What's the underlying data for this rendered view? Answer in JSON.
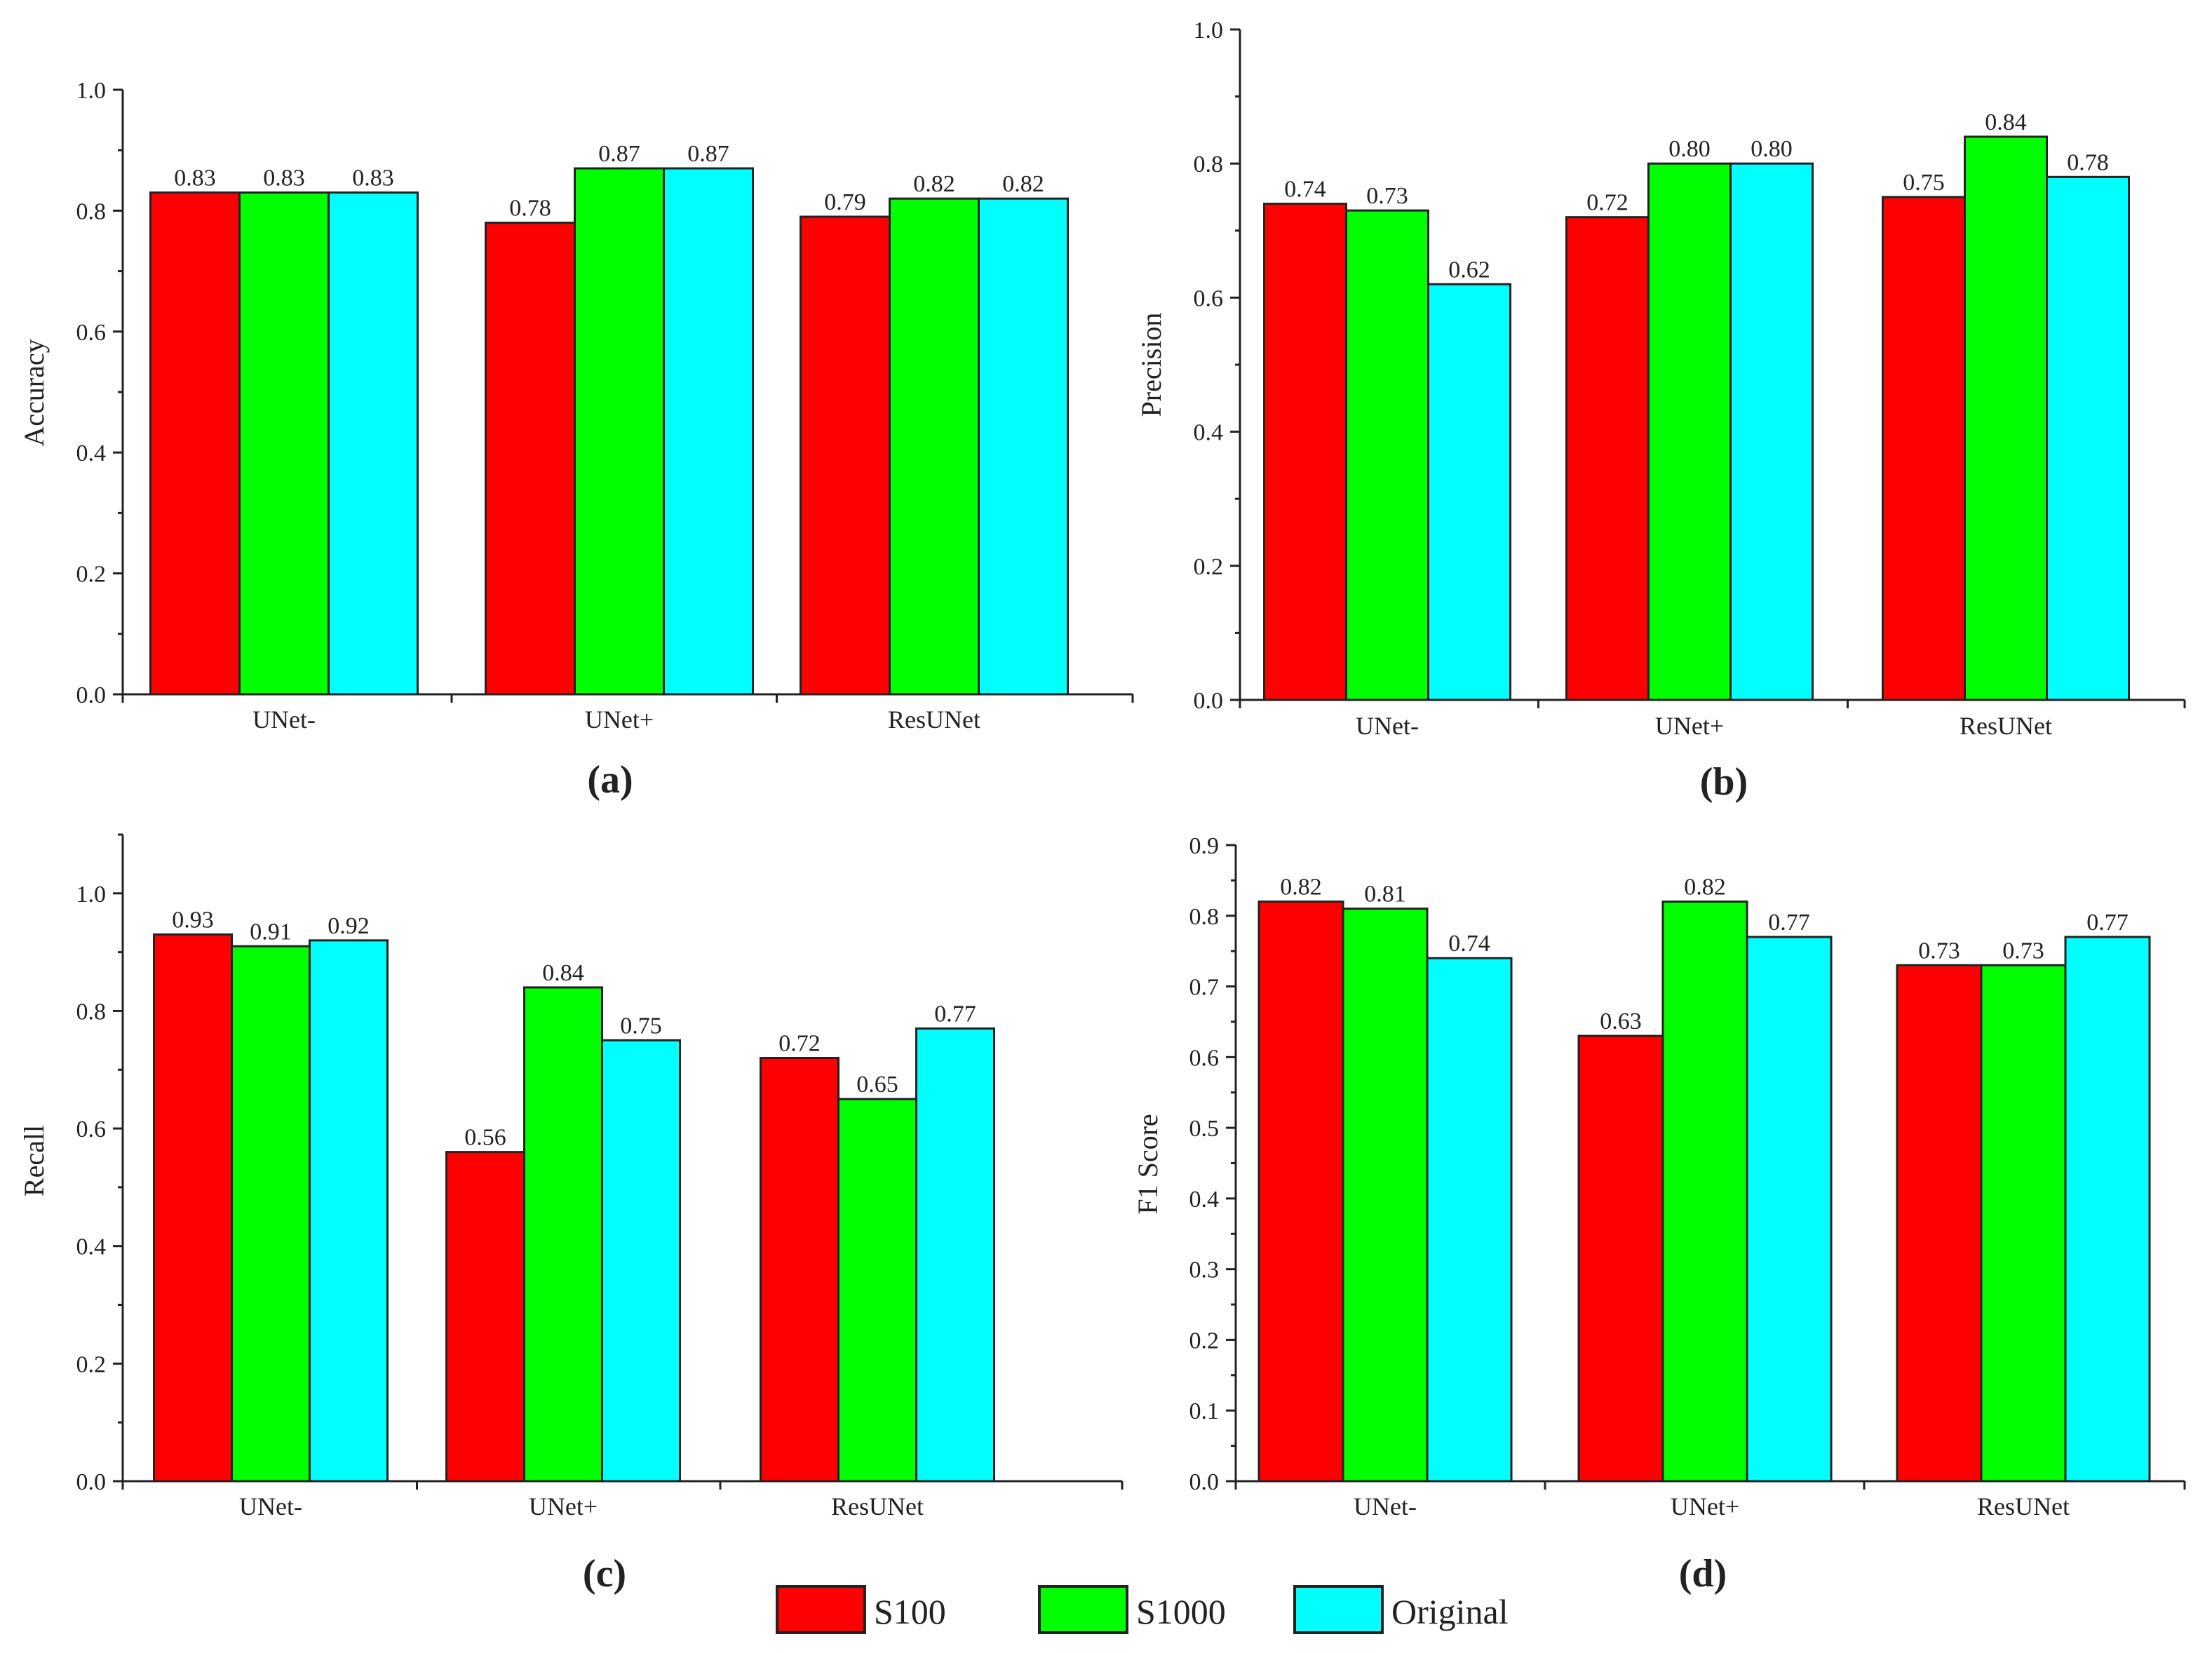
{
  "chart_data": [
    {
      "type": "bar",
      "title": "",
      "panel_label": "(a)",
      "xlabel": "",
      "ylabel": "Accuracy",
      "ylim": [
        0,
        1.0
      ],
      "yticks": [
        0.0,
        0.2,
        0.4,
        0.6,
        0.8,
        1.0
      ],
      "ytick_labels": [
        "0.0",
        "0.2",
        "0.4",
        "0.6",
        "0.8",
        "1.0"
      ],
      "categories": [
        "UNet-",
        "UNet+",
        "ResUNet"
      ],
      "series": [
        {
          "name": "S100",
          "values": [
            0.83,
            0.78,
            0.79
          ],
          "labels": [
            "0.83",
            "0.78",
            "0.79"
          ]
        },
        {
          "name": "S1000",
          "values": [
            0.83,
            0.87,
            0.82
          ],
          "labels": [
            "0.83",
            "0.87",
            "0.82"
          ]
        },
        {
          "name": "Original",
          "values": [
            0.83,
            0.87,
            0.82
          ],
          "labels": [
            "0.83",
            "0.87",
            "0.82"
          ]
        }
      ]
    },
    {
      "type": "bar",
      "title": "",
      "panel_label": "(b)",
      "xlabel": "",
      "ylabel": "Precision",
      "ylim": [
        0,
        1.0
      ],
      "yticks": [
        0.0,
        0.2,
        0.4,
        0.6,
        0.8,
        1.0
      ],
      "ytick_labels": [
        "0.0",
        "0.2",
        "0.4",
        "0.6",
        "0.8",
        "1.0"
      ],
      "categories": [
        "UNet-",
        "UNet+",
        "ResUNet"
      ],
      "series": [
        {
          "name": "S100",
          "values": [
            0.74,
            0.72,
            0.75
          ],
          "labels": [
            "0.74",
            "0.72",
            "0.75"
          ]
        },
        {
          "name": "S1000",
          "values": [
            0.73,
            0.8,
            0.84
          ],
          "labels": [
            "0.73",
            "0.80",
            "0.84"
          ]
        },
        {
          "name": "Original",
          "values": [
            0.62,
            0.8,
            0.78
          ],
          "labels": [
            "0.62",
            "0.80",
            "0.78"
          ]
        }
      ]
    },
    {
      "type": "bar",
      "title": "",
      "panel_label": "(c)",
      "xlabel": "",
      "ylabel": "Recall",
      "ylim": [
        0,
        1.1
      ],
      "yticks": [
        0.0,
        0.2,
        0.4,
        0.6,
        0.8,
        1.0
      ],
      "ytick_labels": [
        "0.0",
        "0.2",
        "0.4",
        "0.6",
        "0.8",
        "1.0"
      ],
      "categories": [
        "UNet-",
        "UNet+",
        "ResUNet"
      ],
      "series": [
        {
          "name": "S100",
          "values": [
            0.93,
            0.56,
            0.72
          ],
          "labels": [
            "0.93",
            "0.56",
            "0.72"
          ]
        },
        {
          "name": "S1000",
          "values": [
            0.91,
            0.84,
            0.65
          ],
          "labels": [
            "0.91",
            "0.84",
            "0.65"
          ]
        },
        {
          "name": "Original",
          "values": [
            0.92,
            0.75,
            0.77
          ],
          "labels": [
            "0.92",
            "0.75",
            "0.77"
          ]
        }
      ]
    },
    {
      "type": "bar",
      "title": "",
      "panel_label": "(d)",
      "xlabel": "",
      "ylabel": "F1 Score",
      "ylim": [
        0,
        0.9
      ],
      "yticks": [
        0.0,
        0.1,
        0.2,
        0.3,
        0.4,
        0.5,
        0.6,
        0.7,
        0.8,
        0.9
      ],
      "ytick_labels": [
        "0.0",
        "0.1",
        "0.2",
        "0.3",
        "0.4",
        "0.5",
        "0.6",
        "0.7",
        "0.8",
        "0.9"
      ],
      "categories": [
        "UNet-",
        "UNet+",
        "ResUNet"
      ],
      "series": [
        {
          "name": "S100",
          "values": [
            0.82,
            0.63,
            0.73
          ],
          "labels": [
            "0.82",
            "0.63",
            "0.73"
          ]
        },
        {
          "name": "S1000",
          "values": [
            0.81,
            0.82,
            0.73
          ],
          "labels": [
            "0.81",
            "0.82",
            "0.73"
          ]
        },
        {
          "name": "Original",
          "values": [
            0.74,
            0.77,
            0.77
          ],
          "labels": [
            "0.74",
            "0.77",
            "0.77"
          ]
        }
      ]
    }
  ],
  "legend": {
    "items": [
      {
        "name": "S100",
        "color": "#ff0000"
      },
      {
        "name": "S1000",
        "color": "#00ff00"
      },
      {
        "name": "Original",
        "color": "#00ffff"
      }
    ]
  }
}
